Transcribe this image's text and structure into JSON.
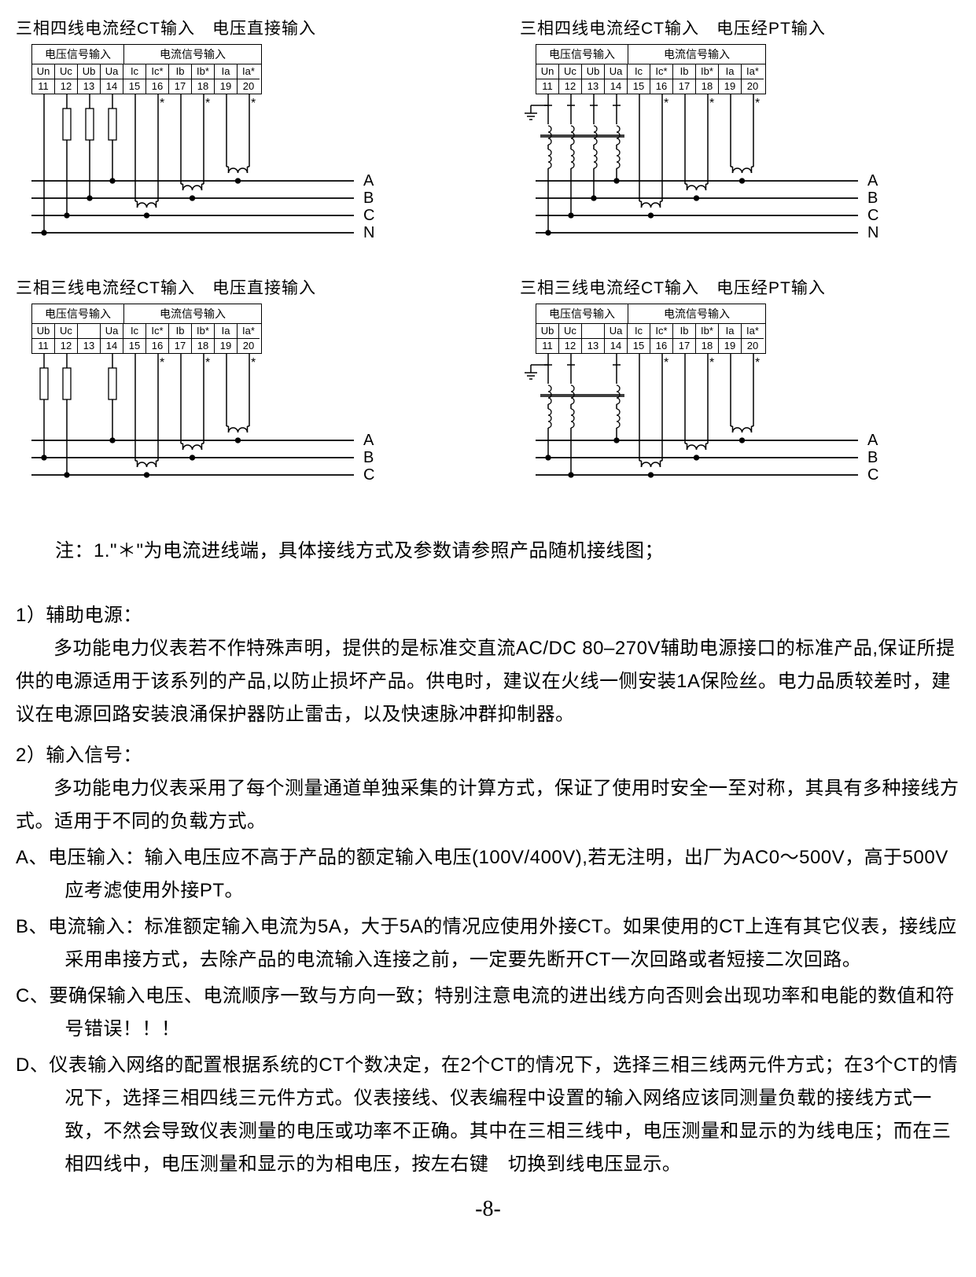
{
  "diagrams": [
    {
      "title": "三相四线电流经CT输入　电压直接输入",
      "voltage_header": "电压信号输入",
      "current_header": "电流信号输入",
      "row1": [
        "Un",
        "Uc",
        "Ub",
        "Ua",
        "Ic",
        "Ic*",
        "Ib",
        "Ib*",
        "Ia",
        "Ia*"
      ],
      "row2": [
        "11",
        "12",
        "13",
        "14",
        "15",
        "16",
        "17",
        "18",
        "19",
        "20"
      ],
      "phases": [
        "A",
        "B",
        "C",
        "N"
      ],
      "pt": false,
      "four_wire": true
    },
    {
      "title": "三相四线电流经CT输入　电压经PT输入",
      "voltage_header": "电压信号输入",
      "current_header": "电流信号输入",
      "row1": [
        "Un",
        "Uc",
        "Ub",
        "Ua",
        "Ic",
        "Ic*",
        "Ib",
        "Ib*",
        "Ia",
        "Ia*"
      ],
      "row2": [
        "11",
        "12",
        "13",
        "14",
        "15",
        "16",
        "17",
        "18",
        "19",
        "20"
      ],
      "phases": [
        "A",
        "B",
        "C",
        "N"
      ],
      "pt": true,
      "four_wire": true
    },
    {
      "title": "三相三线电流经CT输入　电压直接输入",
      "voltage_header": "电压信号输入",
      "current_header": "电流信号输入",
      "row1": [
        "Ub",
        "Uc",
        "",
        "Ua",
        "Ic",
        "Ic*",
        "Ib",
        "Ib*",
        "Ia",
        "Ia*"
      ],
      "row2": [
        "11",
        "12",
        "13",
        "14",
        "15",
        "16",
        "17",
        "18",
        "19",
        "20"
      ],
      "phases": [
        "A",
        "B",
        "C"
      ],
      "pt": false,
      "four_wire": false
    },
    {
      "title": "三相三线电流经CT输入　电压经PT输入",
      "voltage_header": "电压信号输入",
      "current_header": "电流信号输入",
      "row1": [
        "Ub",
        "Uc",
        "",
        "Ua",
        "Ic",
        "Ic*",
        "Ib",
        "Ib*",
        "Ia",
        "Ia*"
      ],
      "row2": [
        "11",
        "12",
        "13",
        "14",
        "15",
        "16",
        "17",
        "18",
        "19",
        "20"
      ],
      "phases": [
        "A",
        "B",
        "C"
      ],
      "pt": true,
      "four_wire": false
    }
  ],
  "note": "注：1.\"＊\"为电流进线端，具体接线方式及参数请参照产品随机接线图；",
  "s1_h": "1）辅助电源：",
  "s1_p": "多功能电力仪表若不作特殊声明，提供的是标准交直流AC/DC 80–270V辅助电源接口的标准产品,保证所提供的电源适用于该系列的产品,以防止损坏产品。供电时，建议在火线一侧安装1A保险丝。电力品质较差时，建议在电源回路安装浪涌保护器防止雷击，以及快速脉冲群抑制器。",
  "s2_h": "2）输入信号：",
  "s2_p": "多功能电力仪表采用了每个测量通道单独采集的计算方式，保证了使用时安全一至对称，其具有多种接线方式。适用于不同的负载方式。",
  "item_a": "A、电压输入：输入电压应不高于产品的额定输入电压(100V/400V),若无注明，出厂为AC0～500V，高于500V应考滤使用外接PT。",
  "item_b": "B、电流输入：标准额定输入电流为5A，大于5A的情况应使用外接CT。如果使用的CT上连有其它仪表，接线应采用串接方式，去除产品的电流输入连接之前，一定要先断开CT一次回路或者短接二次回路。",
  "item_c": "C、要确保输入电压、电流顺序一致与方向一致；特别注意电流的进出线方向否则会出现功率和电能的数值和符号错误！！！",
  "item_d": "D、仪表输入网络的配置根据系统的CT个数决定，在2个CT的情况下，选择三相三线两元件方式；在3个CT的情况下，选择三相四线三元件方式。仪表接线、仪表编程中设置的输入网络应该同测量负载的接线方式一致，不然会导致仪表测量的电压或功率不正确。其中在三相三线中，电压测量和显示的为线电压；而在三相四线中，电压测量和显示的为相电压，按左右键　切换到线电压显示。",
  "page_num": "-8-",
  "colors": {
    "line": "#000000",
    "bg": "#ffffff"
  }
}
